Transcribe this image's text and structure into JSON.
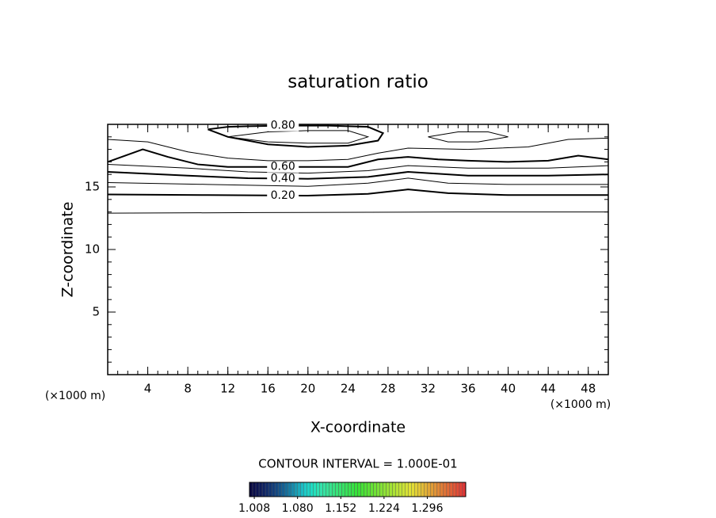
{
  "chart_data": {
    "type": "contour",
    "title": "saturation ratio",
    "x_label": "X-coordinate",
    "y_label": "Z-coordinate",
    "x_unit_left": "(×1000 m)",
    "x_unit_right": "(×1000 m)",
    "xlim": [
      0,
      50
    ],
    "ylim": [
      0,
      20
    ],
    "xticks": [
      4,
      8,
      12,
      16,
      20,
      24,
      28,
      32,
      36,
      40,
      44,
      48
    ],
    "yticks": [
      5,
      10,
      15
    ],
    "xminor": 1,
    "yminor": 1,
    "contours": [
      {
        "thick": false,
        "x": [
          0,
          15,
          35,
          50
        ],
        "y": [
          12.9,
          12.95,
          13.0,
          13.0
        ]
      },
      {
        "label": "0.20",
        "thick": true,
        "x": [
          0,
          10,
          20,
          26,
          30,
          34,
          40,
          50
        ],
        "y": [
          14.4,
          14.35,
          14.3,
          14.45,
          14.8,
          14.5,
          14.35,
          14.35
        ]
      },
      {
        "thick": false,
        "x": [
          0,
          10,
          20,
          26,
          30,
          34,
          40,
          50
        ],
        "y": [
          15.35,
          15.2,
          15.05,
          15.3,
          15.7,
          15.3,
          15.2,
          15.2
        ]
      },
      {
        "label": "0.40",
        "thick": true,
        "x": [
          0,
          8,
          14,
          20,
          26,
          30,
          36,
          44,
          50
        ],
        "y": [
          16.2,
          15.9,
          15.7,
          15.65,
          15.8,
          16.2,
          15.9,
          15.9,
          16.0
        ]
      },
      {
        "thick": false,
        "x": [
          0,
          8,
          14,
          20,
          26,
          30,
          36,
          44,
          50
        ],
        "y": [
          16.8,
          16.5,
          16.2,
          16.1,
          16.3,
          16.7,
          16.5,
          16.5,
          16.7
        ]
      },
      {
        "label": "0.60",
        "thick": true,
        "x": [
          0,
          3.5,
          6,
          9,
          12,
          16,
          20,
          24,
          27,
          30,
          33,
          36,
          40,
          44,
          47,
          50
        ],
        "y": [
          17.0,
          18.0,
          17.4,
          16.8,
          16.6,
          16.6,
          16.6,
          16.6,
          17.2,
          17.4,
          17.2,
          17.1,
          17.0,
          17.1,
          17.5,
          17.2
        ]
      },
      {
        "thick": false,
        "x": [
          0,
          4,
          8,
          12,
          16,
          20,
          24,
          27,
          30,
          36,
          42,
          46,
          50
        ],
        "y": [
          18.8,
          18.6,
          17.8,
          17.3,
          17.1,
          17.1,
          17.2,
          17.7,
          18.1,
          18.0,
          18.2,
          18.8,
          18.9
        ]
      },
      {
        "label": "0.80",
        "thick": true,
        "x": [
          10,
          12,
          14,
          18,
          22,
          26,
          27.5,
          27,
          24,
          20,
          16,
          12,
          10
        ],
        "y": [
          19.6,
          19.8,
          19.85,
          19.9,
          19.9,
          19.8,
          19.3,
          18.7,
          18.3,
          18.2,
          18.4,
          19.0,
          19.6
        ]
      },
      {
        "thick": false,
        "x": [
          12,
          16,
          20,
          24,
          26,
          24,
          20,
          16,
          12
        ],
        "y": [
          19.0,
          18.6,
          18.5,
          18.5,
          19.0,
          19.5,
          19.5,
          19.4,
          19.0
        ]
      },
      {
        "thick": false,
        "x": [
          32,
          34,
          37,
          40,
          38,
          35,
          32
        ],
        "y": [
          19.0,
          18.6,
          18.6,
          19.0,
          19.4,
          19.4,
          19.0
        ]
      }
    ],
    "contour_interval_text": "CONTOUR INTERVAL = 1.000E-01",
    "colorbar_lim": [
      1.0,
      1.36
    ],
    "colorbar_ticks": [
      {
        "value": 1.008,
        "label": "1.008"
      },
      {
        "value": 1.08,
        "label": "1.080"
      },
      {
        "value": 1.152,
        "label": "1.152"
      },
      {
        "value": 1.224,
        "label": "1.224"
      },
      {
        "value": 1.296,
        "label": "1.296"
      }
    ]
  }
}
